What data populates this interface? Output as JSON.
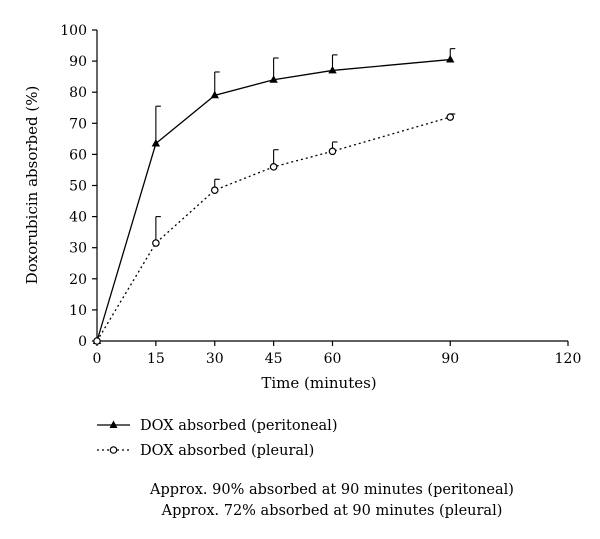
{
  "chart_data": {
    "type": "line",
    "title": "",
    "xlabel": "Time (minutes)",
    "ylabel": "Doxorubicin absorbed (%)",
    "xlim": [
      0,
      120
    ],
    "ylim": [
      0,
      100
    ],
    "xticks": [
      0,
      15,
      30,
      45,
      60,
      90,
      120
    ],
    "yticks": [
      0,
      10,
      20,
      30,
      40,
      50,
      60,
      70,
      80,
      90,
      100
    ],
    "grid": false,
    "legend_position": "bottom-left",
    "series": [
      {
        "name": "DOX absorbed (peritoneal)",
        "x": [
          0,
          15,
          30,
          45,
          60,
          90
        ],
        "y": [
          0,
          63.5,
          79,
          84,
          87,
          90.5
        ],
        "error_upper": [
          0,
          12,
          7.5,
          7,
          5,
          3.5
        ],
        "marker": "triangle-filled",
        "line": "solid"
      },
      {
        "name": "DOX absorbed (pleural)",
        "x": [
          0,
          15,
          30,
          45,
          60,
          90
        ],
        "y": [
          0,
          31.5,
          48.5,
          56,
          61,
          72
        ],
        "error_upper": [
          0,
          8.5,
          3.5,
          5.5,
          3,
          1
        ],
        "marker": "circle-open",
        "line": "dotted"
      }
    ],
    "annotations": [
      "Approx. 90% absorbed at 90 minutes (peritoneal)",
      "Approx. 72% absorbed at 90 minutes (pleural)"
    ]
  }
}
